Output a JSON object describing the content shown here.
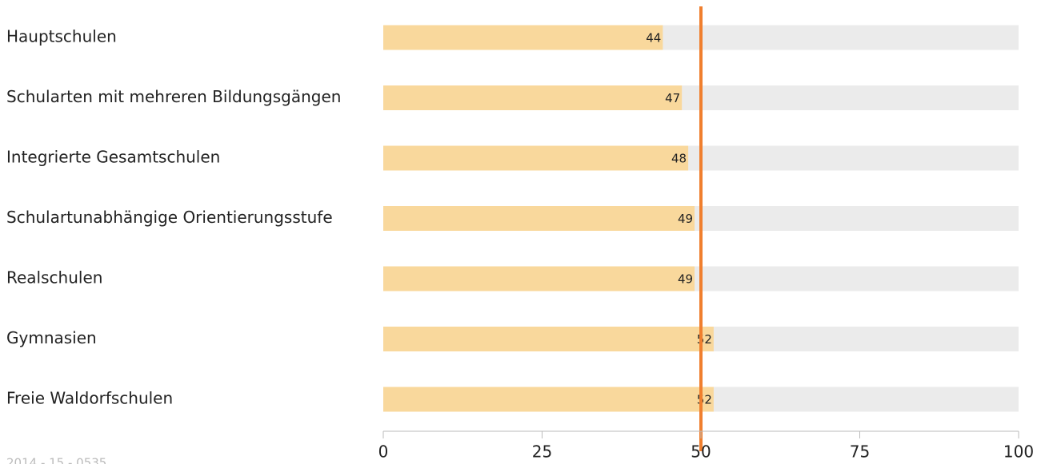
{
  "chart_data": {
    "type": "barh",
    "categories": [
      "Hauptschulen",
      "Schularten mit mehreren Bildungsgängen",
      "Integrierte Gesamtschulen",
      "Schulartunabhängige Orientierungsstufe",
      "Realschulen",
      "Gymnasien",
      "Freie Waldorfschulen"
    ],
    "values": [
      44,
      47,
      48,
      49,
      49,
      52,
      52
    ],
    "color": "#f9d89c",
    "track_color": "#ebebeb",
    "reference_line": 50,
    "reference_color": "#f07f2e",
    "xlim": [
      0,
      100
    ],
    "xticks": [
      0,
      25,
      50,
      75,
      100
    ],
    "footnote": "2014 - 15 - 0535"
  }
}
